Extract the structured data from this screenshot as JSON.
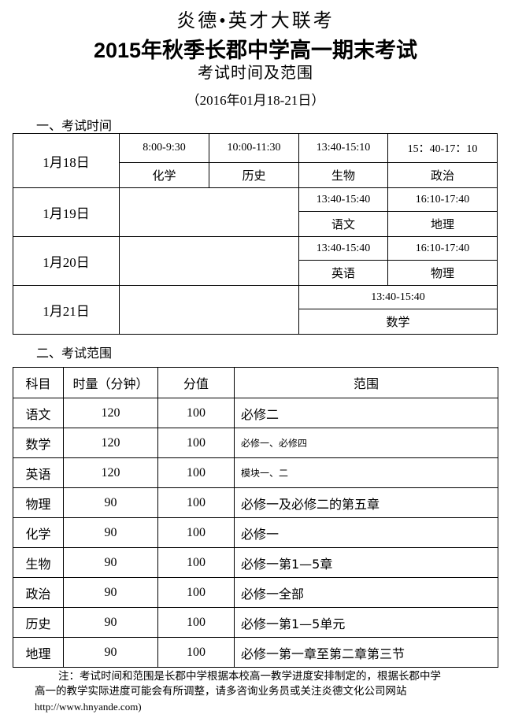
{
  "header": {
    "brand": "炎德•英才大联考",
    "title": "2015年秋季长郡中学高一期末考试",
    "subtitle": "考试时间及范围",
    "date_range": "（2016年01月18-21日）"
  },
  "schedule": {
    "heading": "一、考试时间",
    "days": [
      {
        "date": "1月18日",
        "slots": [
          {
            "time": "8:00-9:30",
            "subject": "化学"
          },
          {
            "time": "10:00-11:30",
            "subject": "历史"
          },
          {
            "time": "13:40-15:10",
            "subject": "生物"
          },
          {
            "time": "15：40-17：10",
            "subject": "政治"
          }
        ]
      },
      {
        "date": "1月19日",
        "slots": [
          {
            "time": "13:40-15:40",
            "subject": "语文"
          },
          {
            "time": "16:10-17:40",
            "subject": "地理"
          }
        ]
      },
      {
        "date": "1月20日",
        "slots": [
          {
            "time": "13:40-15:40",
            "subject": "英语"
          },
          {
            "time": "16:10-17:40",
            "subject": "物理"
          }
        ]
      },
      {
        "date": "1月21日",
        "slots": [
          {
            "time": "13:40-15:40",
            "subject": "数学"
          }
        ]
      }
    ]
  },
  "scope": {
    "heading": "二、考试范围",
    "columns": [
      "科目",
      "时量（分钟）",
      "分值",
      "范围"
    ],
    "rows": [
      [
        "语文",
        "120",
        "100",
        "必修二"
      ],
      [
        "数学",
        "120",
        "100",
        "必修一、必修四"
      ],
      [
        "英语",
        "120",
        "100",
        "模块一、二"
      ],
      [
        "物理",
        "90",
        "100",
        "必修一及必修二的第五章"
      ],
      [
        "化学",
        "90",
        "100",
        "必修一"
      ],
      [
        "生物",
        "90",
        "100",
        "必修一第1—5章"
      ],
      [
        "政治",
        "90",
        "100",
        "必修一全部"
      ],
      [
        "历史",
        "90",
        "100",
        "必修一第1—5单元"
      ],
      [
        "地理",
        "90",
        "100",
        "必修一第一章至第二章第三节"
      ]
    ]
  },
  "note": {
    "line1": "注：考试时间和范围是长郡中学根据本校高一教学进度安排制定的，根据长郡中学",
    "line2": "高一的教学实际进度可能会有所调整，请多咨询业务员或关注炎德文化公司网站",
    "url": "http://www.hnyande.com)"
  }
}
